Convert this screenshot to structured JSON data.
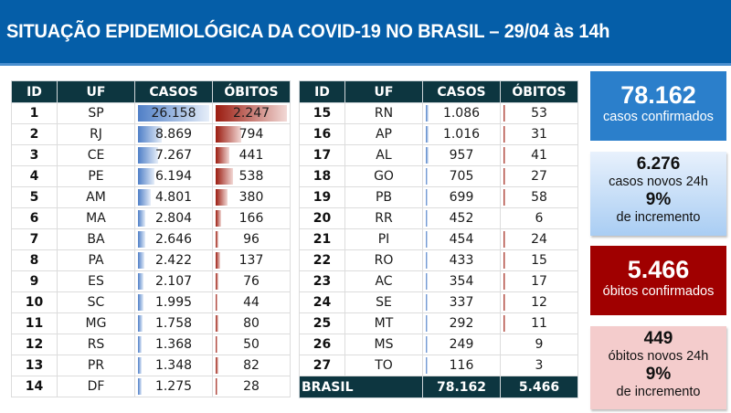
{
  "banner": {
    "title": "SITUAÇÃO EPIDEMIOLÓGICA DA COVID-19 NO BRASIL – 29/04 às 14h",
    "bg_color": "#055ea8"
  },
  "table": {
    "headers": [
      "ID",
      "UF",
      "CASOS",
      "ÓBITOS"
    ],
    "left_rows": [
      {
        "id": "1",
        "uf": "SP",
        "casos": "26.158",
        "obitos": "2.247"
      },
      {
        "id": "2",
        "uf": "RJ",
        "casos": "8.869",
        "obitos": "794"
      },
      {
        "id": "3",
        "uf": "CE",
        "casos": "7.267",
        "obitos": "441"
      },
      {
        "id": "4",
        "uf": "PE",
        "casos": "6.194",
        "obitos": "538"
      },
      {
        "id": "5",
        "uf": "AM",
        "casos": "4.801",
        "obitos": "380"
      },
      {
        "id": "6",
        "uf": "MA",
        "casos": "2.804",
        "obitos": "166"
      },
      {
        "id": "7",
        "uf": "BA",
        "casos": "2.646",
        "obitos": "96"
      },
      {
        "id": "8",
        "uf": "PA",
        "casos": "2.422",
        "obitos": "137"
      },
      {
        "id": "9",
        "uf": "ES",
        "casos": "2.107",
        "obitos": "76"
      },
      {
        "id": "10",
        "uf": "SC",
        "casos": "1.995",
        "obitos": "44"
      },
      {
        "id": "11",
        "uf": "MG",
        "casos": "1.758",
        "obitos": "80"
      },
      {
        "id": "12",
        "uf": "RS",
        "casos": "1.368",
        "obitos": "50"
      },
      {
        "id": "13",
        "uf": "PR",
        "casos": "1.348",
        "obitos": "82"
      },
      {
        "id": "14",
        "uf": "DF",
        "casos": "1.275",
        "obitos": "28"
      }
    ],
    "right_rows": [
      {
        "id": "15",
        "uf": "RN",
        "casos": "1.086",
        "obitos": "53"
      },
      {
        "id": "16",
        "uf": "AP",
        "casos": "1.016",
        "obitos": "31"
      },
      {
        "id": "17",
        "uf": "AL",
        "casos": "957",
        "obitos": "41"
      },
      {
        "id": "18",
        "uf": "GO",
        "casos": "705",
        "obitos": "27"
      },
      {
        "id": "19",
        "uf": "PB",
        "casos": "699",
        "obitos": "58"
      },
      {
        "id": "20",
        "uf": "RR",
        "casos": "452",
        "obitos": "6"
      },
      {
        "id": "21",
        "uf": "PI",
        "casos": "454",
        "obitos": "24"
      },
      {
        "id": "22",
        "uf": "RO",
        "casos": "433",
        "obitos": "15"
      },
      {
        "id": "23",
        "uf": "AC",
        "casos": "354",
        "obitos": "17"
      },
      {
        "id": "24",
        "uf": "SE",
        "casos": "337",
        "obitos": "12"
      },
      {
        "id": "25",
        "uf": "MT",
        "casos": "292",
        "obitos": "11"
      },
      {
        "id": "26",
        "uf": "MS",
        "casos": "249",
        "obitos": "9"
      },
      {
        "id": "27",
        "uf": "TO",
        "casos": "116",
        "obitos": "3"
      }
    ],
    "total": {
      "label": "BRASIL",
      "casos": "78.162",
      "obitos": "5.466"
    },
    "colors": {
      "header_bg": "#0d3640",
      "casos_bar": "#4f7fc7",
      "obitos_bar": "#9b1c10"
    }
  },
  "cards": {
    "casos_confirmados": {
      "value": "78.162",
      "label": "casos confirmados",
      "color": "#2b7fcb"
    },
    "casos_novos": {
      "value": "6.276",
      "label": "casos novos 24h",
      "pct": "9%",
      "pct_label": "de incremento"
    },
    "obitos_confirmados": {
      "value": "5.466",
      "label": "óbitos confirmados",
      "color": "#a00000"
    },
    "obitos_novos": {
      "value": "449",
      "label": "óbitos novos 24h",
      "pct": "9%",
      "pct_label": "de incremento"
    }
  }
}
